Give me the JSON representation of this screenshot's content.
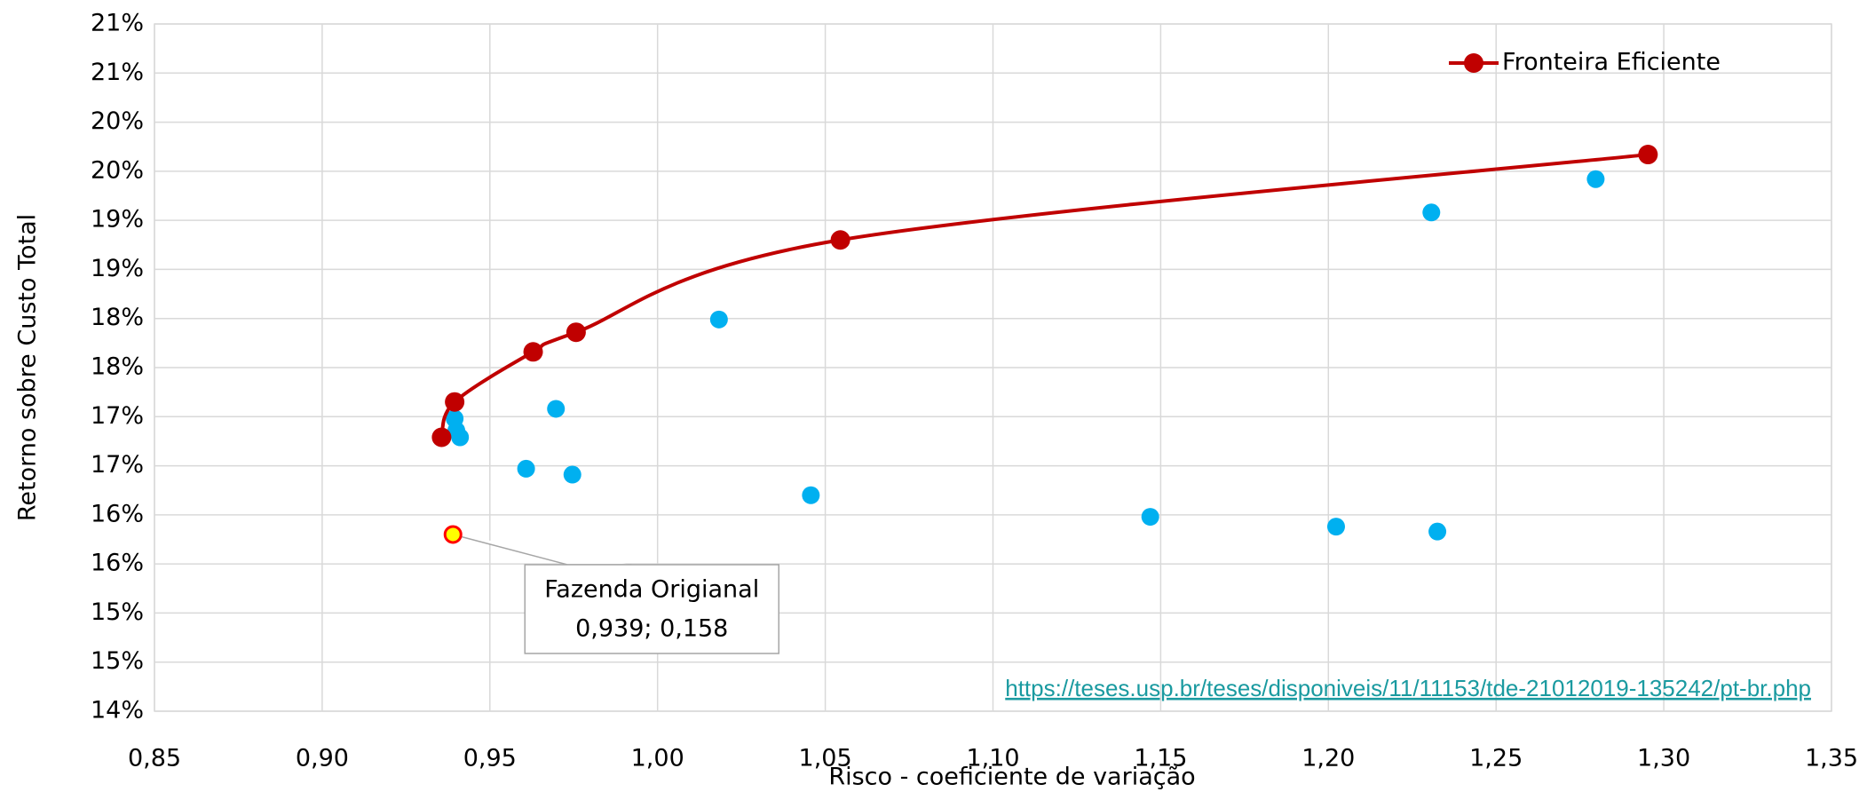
{
  "chart_data": {
    "type": "scatter",
    "xlabel": "Risco - coeficiente de variação",
    "ylabel": "Retorno sobre Custo Total",
    "xlim": [
      0.85,
      1.35
    ],
    "ylim": [
      14,
      21
    ],
    "xticks": [
      {
        "value": 0.85,
        "label": "0,85"
      },
      {
        "value": 0.9,
        "label": "0,90"
      },
      {
        "value": 0.95,
        "label": "0,95"
      },
      {
        "value": 1.0,
        "label": "1,00"
      },
      {
        "value": 1.05,
        "label": "1,05"
      },
      {
        "value": 1.1,
        "label": "1,10"
      },
      {
        "value": 1.15,
        "label": "1,15"
      },
      {
        "value": 1.2,
        "label": "1,20"
      },
      {
        "value": 1.25,
        "label": "1,25"
      },
      {
        "value": 1.3,
        "label": "1,30"
      },
      {
        "value": 1.35,
        "label": "1,35"
      }
    ],
    "yticks": [
      {
        "value": 14,
        "label": "14%"
      },
      {
        "value": 14.5,
        "label": "15%"
      },
      {
        "value": 15,
        "label": "15%"
      },
      {
        "value": 15.5,
        "label": "16%"
      },
      {
        "value": 16,
        "label": "16%"
      },
      {
        "value": 16.5,
        "label": "17%"
      },
      {
        "value": 17,
        "label": "17%"
      },
      {
        "value": 17.5,
        "label": "18%"
      },
      {
        "value": 18,
        "label": "18%"
      },
      {
        "value": 18.5,
        "label": "19%"
      },
      {
        "value": 19,
        "label": "19%"
      },
      {
        "value": 19.5,
        "label": "20%"
      },
      {
        "value": 20,
        "label": "20%"
      },
      {
        "value": 20.5,
        "label": "21%"
      },
      {
        "value": 21,
        "label": "21%"
      }
    ],
    "grid": true,
    "legend": "upper right",
    "series": [
      {
        "name": "Fronteira Eficiente",
        "color": "#c00000",
        "x": [
          0.9356,
          0.9395,
          0.9629,
          0.9757,
          1.0545,
          1.2953
        ],
        "values": [
          16.79,
          17.15,
          17.66,
          17.86,
          18.8,
          19.67
        ]
      }
    ],
    "points": {
      "color": "#00b0f0",
      "x": [
        0.9395,
        0.94,
        0.9411,
        0.9697,
        0.9608,
        0.9746,
        1.0183,
        1.0457,
        1.1469,
        1.2023,
        1.2325,
        1.2307,
        1.2797
      ],
      "values": [
        16.98,
        16.86,
        16.79,
        17.08,
        16.47,
        16.41,
        17.99,
        16.2,
        15.98,
        15.88,
        15.83,
        19.08,
        19.42
      ]
    },
    "annotation": {
      "x": 0.939,
      "y": 15.8,
      "fill": "#ffff00",
      "stroke": "#ff0000",
      "text": [
        "Fazenda Origianal",
        "0,939; 0,158"
      ]
    },
    "source": "https://teses.usp.br/teses/disponiveis/11/11153/tde-21012019-135242/pt-br.php"
  }
}
